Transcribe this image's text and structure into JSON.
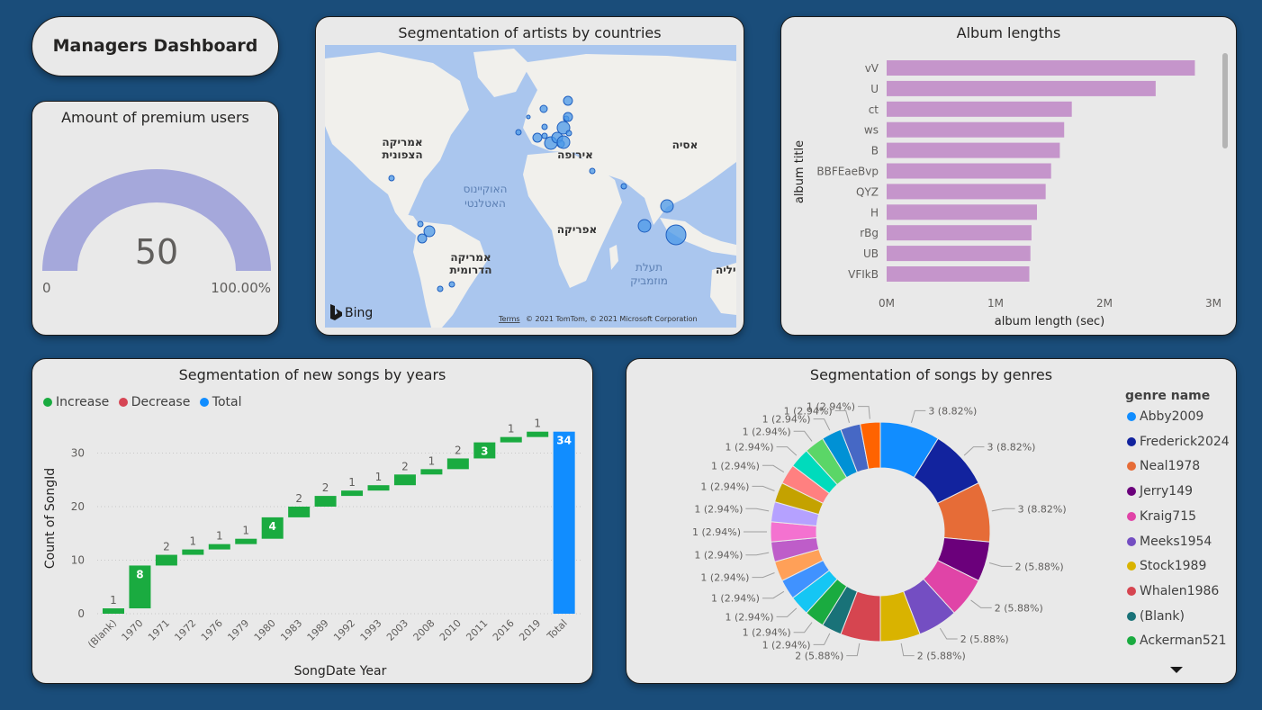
{
  "header": {
    "title": "Managers Dashboard"
  },
  "gauge": {
    "title": "Amount of premium users",
    "value": "50",
    "value_num": 50,
    "min_label": "0",
    "max_label": "100.00%",
    "fill_fraction": 1.0,
    "color": "#a5a8db"
  },
  "map": {
    "title": "Segmentation of artists by countries",
    "labels": {
      "north_america": [
        "אמריקה",
        "הצפונית"
      ],
      "atlantic": [
        "האוקיינוס",
        "האטלנטי"
      ],
      "europe": "אירופה",
      "asia": "אסיה",
      "africa": "אפריקה",
      "south_america": [
        "אמריקה",
        "הדרומית"
      ],
      "mozambique": [
        "תעלת",
        "מוזמביק"
      ],
      "edge": "יליה"
    },
    "bing_label": "Bing",
    "terms_label": "Terms",
    "copyright": "© 2021 TomTom, © 2021 Microsoft Corporation",
    "bubble_color": "#4a98e8"
  },
  "album_chart": {
    "title": "Album lengths",
    "chart_data": {
      "type": "bar",
      "orientation": "horizontal",
      "categories": [
        "vV",
        "U",
        "ct",
        "ws",
        "B",
        "BBFEaeBvp",
        "QYZ",
        "H",
        "rBg",
        "UB",
        "VFIkB"
      ],
      "values": [
        2830000,
        2470000,
        1700000,
        1630000,
        1590000,
        1510000,
        1460000,
        1380000,
        1330000,
        1320000,
        1310000
      ],
      "xlabel": "album length (sec)",
      "ylabel": "album title",
      "xticks": [
        "0M",
        "1M",
        "2M",
        "3M"
      ],
      "xlim": [
        0,
        3000000
      ],
      "color": "#c595cb"
    }
  },
  "years_chart": {
    "title": "Segmentation of new songs by years",
    "legend": [
      {
        "label": "Increase",
        "color": "#1aab40"
      },
      {
        "label": "Decrease",
        "color": "#d64554"
      },
      {
        "label": "Total",
        "color": "#118dff"
      }
    ],
    "chart_data": {
      "type": "bar",
      "subtype": "waterfall",
      "categories": [
        "(Blank)",
        "1970",
        "1971",
        "1972",
        "1976",
        "1979",
        "1980",
        "1983",
        "1989",
        "1992",
        "1993",
        "2003",
        "2008",
        "2010",
        "2011",
        "2016",
        "2019",
        "Total"
      ],
      "values": [
        1,
        8,
        2,
        1,
        1,
        1,
        4,
        2,
        2,
        1,
        1,
        2,
        1,
        2,
        3,
        1,
        1,
        34
      ],
      "xlabel": "SongDate Year",
      "ylabel": "Count of SongId",
      "yticks": [
        0,
        10,
        20,
        30
      ],
      "ylim": [
        0,
        36
      ]
    }
  },
  "genre_chart": {
    "title": "Segmentation of songs by genres",
    "legend_title": "genre name",
    "legend_items": [
      {
        "label": "Abby2009",
        "color": "#118dff"
      },
      {
        "label": "Frederick2024",
        "color": "#12239e"
      },
      {
        "label": "Neal1978",
        "color": "#e66c37"
      },
      {
        "label": "Jerry149",
        "color": "#6b007b"
      },
      {
        "label": "Kraig715",
        "color": "#e044a7"
      },
      {
        "label": "Meeks1954",
        "color": "#744ec2"
      },
      {
        "label": "Stock1989",
        "color": "#d9b300"
      },
      {
        "label": "Whalen1986",
        "color": "#d64550"
      },
      {
        "label": "(Blank)",
        "color": "#197278"
      },
      {
        "label": "Ackerman521",
        "color": "#1aab40"
      }
    ],
    "chart_data": {
      "type": "pie",
      "style": "donut",
      "values": [
        3,
        3,
        3,
        2,
        2,
        2,
        2,
        2,
        1,
        1,
        1,
        1,
        1,
        1,
        1,
        1,
        1,
        1,
        1,
        1,
        1,
        1,
        1
      ],
      "labels": [
        "3 (8.82%)",
        "3 (8.82%)",
        "3 (8.82%)",
        "2 (5.88%)",
        "2 (5.88%)",
        "2 (5.88%)",
        "2 (5.88%)",
        "2 (5.88%)",
        "1 (2.94%)",
        "1 (2.94%)",
        "1 (2.94%)",
        "1 (2.94%)",
        "1 (2.94%)",
        "1 (2.94%)",
        "1 (2.94%)",
        "1 (2.94%)",
        "1 (2.94%)",
        "1 (2.94%)",
        "1 (2.94%)",
        "1 (2.94%)",
        "1 (2.94%)",
        "1 (2.94%)",
        "1 (2.94%)"
      ],
      "colors": [
        "#118dff",
        "#12239e",
        "#e66c37",
        "#6b007b",
        "#e044a7",
        "#744ec2",
        "#d9b300",
        "#d64550",
        "#197278",
        "#1aab40",
        "#15c6f4",
        "#4092ff",
        "#ffa058",
        "#be5dc9",
        "#f472d0",
        "#b5a1ff",
        "#c4a200",
        "#ff8080",
        "#00dbbc",
        "#5bd667",
        "#0091d5",
        "#4668c5",
        "#ff6300"
      ]
    }
  }
}
